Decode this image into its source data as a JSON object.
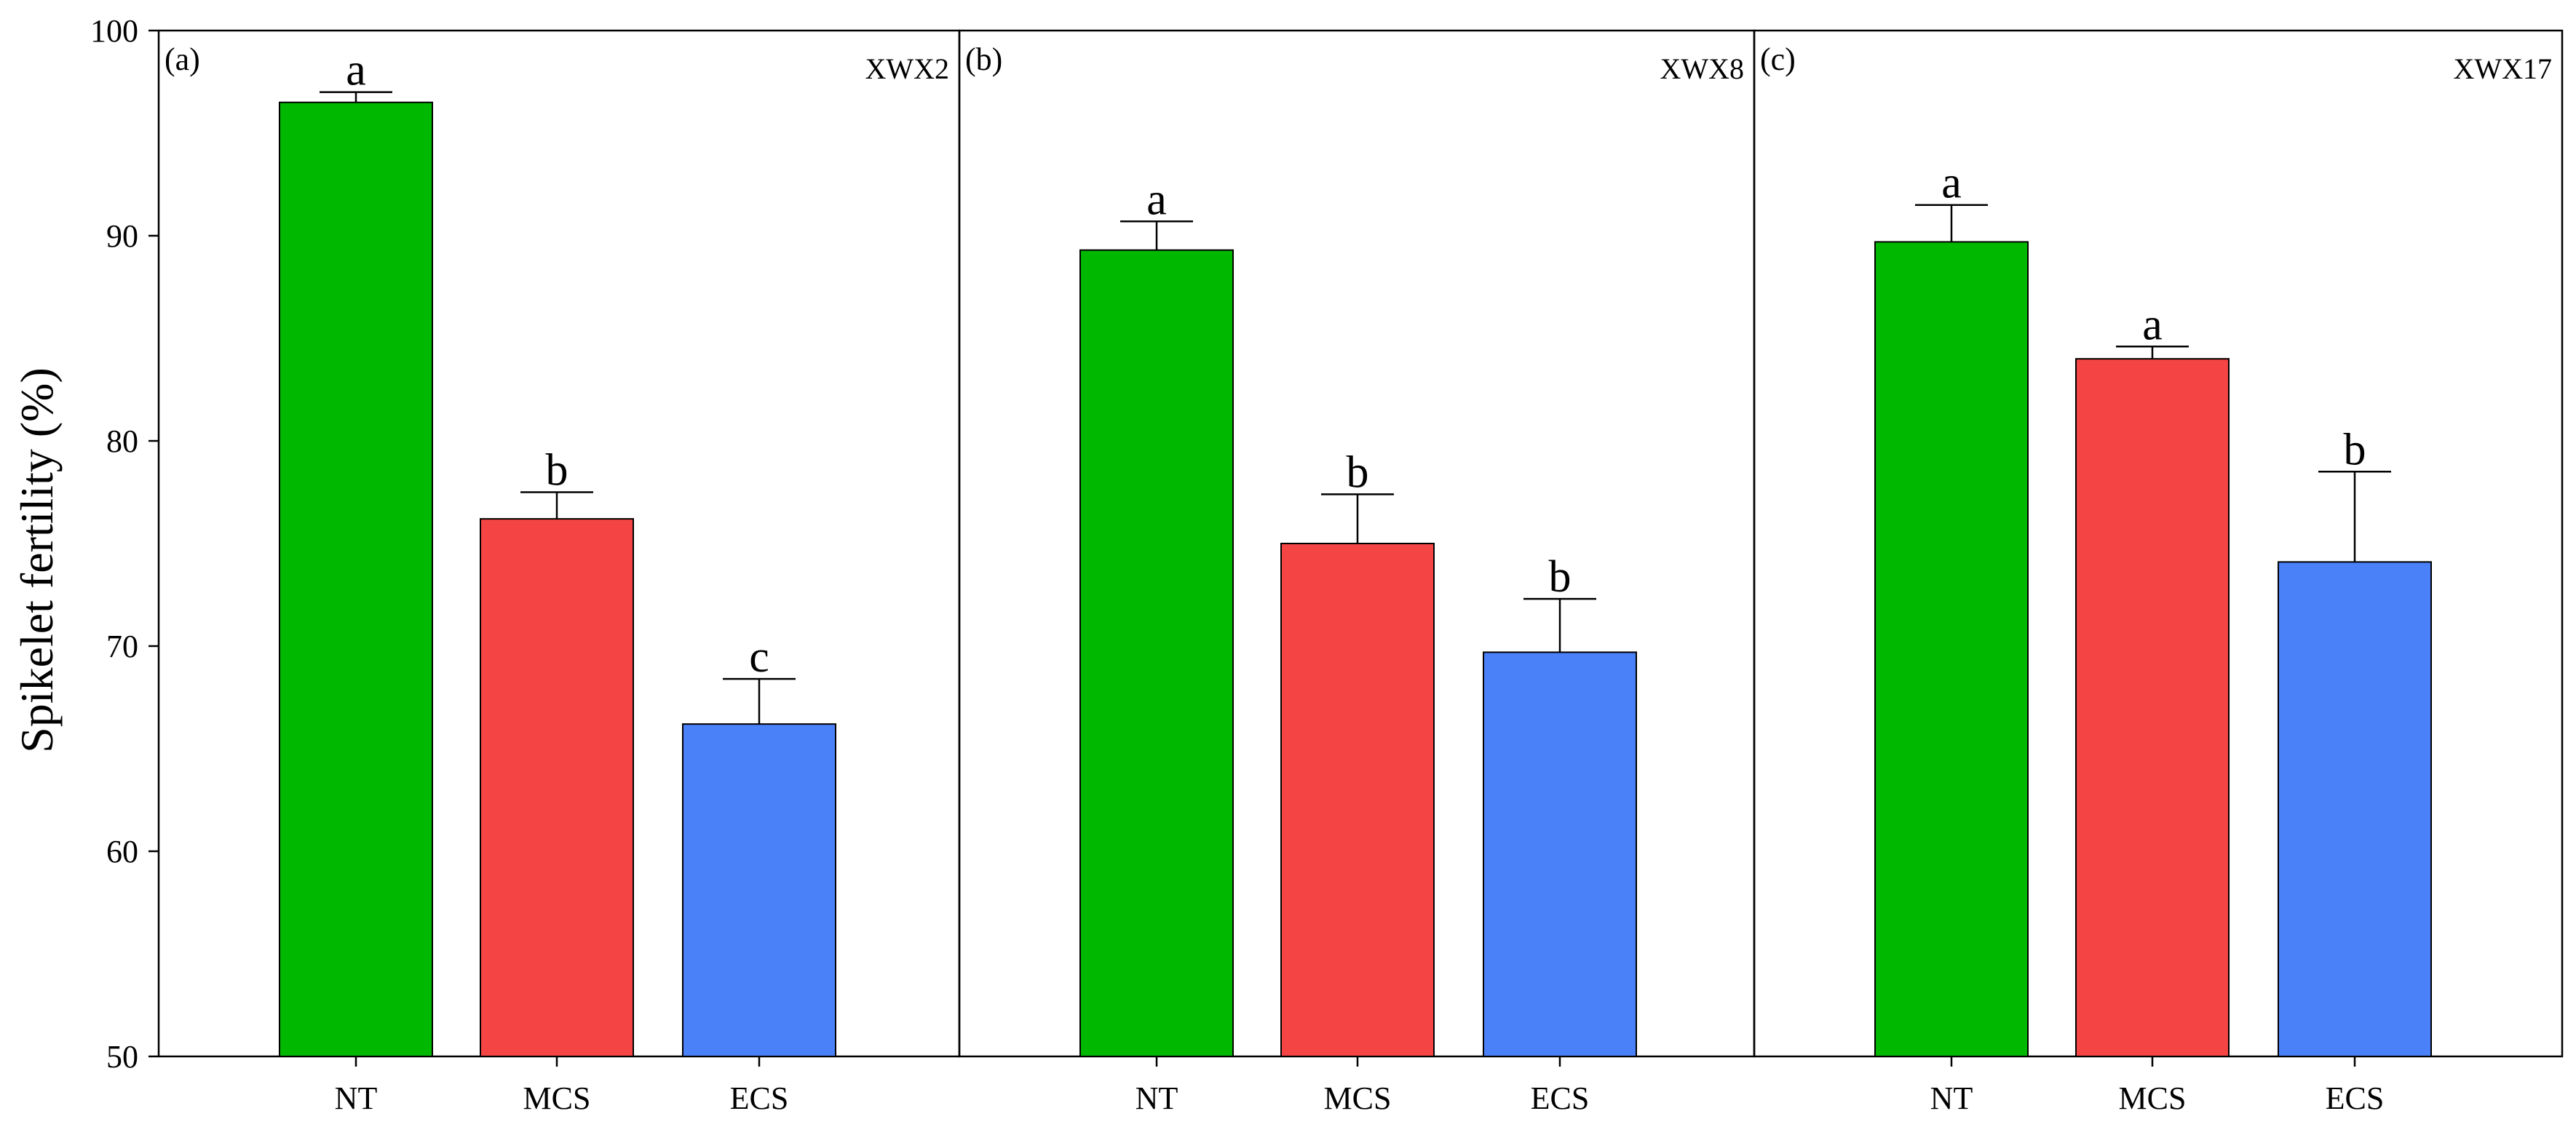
{
  "chart_data": {
    "type": "bar",
    "ylabel": "Spikelet fertility (%)",
    "ylim": [
      50,
      100
    ],
    "yticks": [
      50,
      60,
      70,
      80,
      90,
      100
    ],
    "categories": [
      "NT",
      "MCS",
      "ECS"
    ],
    "colors": {
      "NT": "#00b800",
      "MCS": "#f44444",
      "ECS": "#4a80f8"
    },
    "grid": false,
    "panels": [
      {
        "label": "(a)",
        "cultivar": "XWX2",
        "values": [
          96.5,
          76.2,
          66.2
        ],
        "errors": [
          0.5,
          1.3,
          2.2
        ],
        "significance": [
          "a",
          "b",
          "c"
        ]
      },
      {
        "label": "(b)",
        "cultivar": "XWX8",
        "values": [
          89.3,
          75.0,
          69.7
        ],
        "errors": [
          1.4,
          2.4,
          2.6
        ],
        "significance": [
          "a",
          "b",
          "b"
        ]
      },
      {
        "label": "(c)",
        "cultivar": "XWX17",
        "values": [
          89.7,
          84.0,
          74.1
        ],
        "errors": [
          1.8,
          0.6,
          4.4
        ],
        "significance": [
          "a",
          "a",
          "b"
        ]
      }
    ]
  }
}
